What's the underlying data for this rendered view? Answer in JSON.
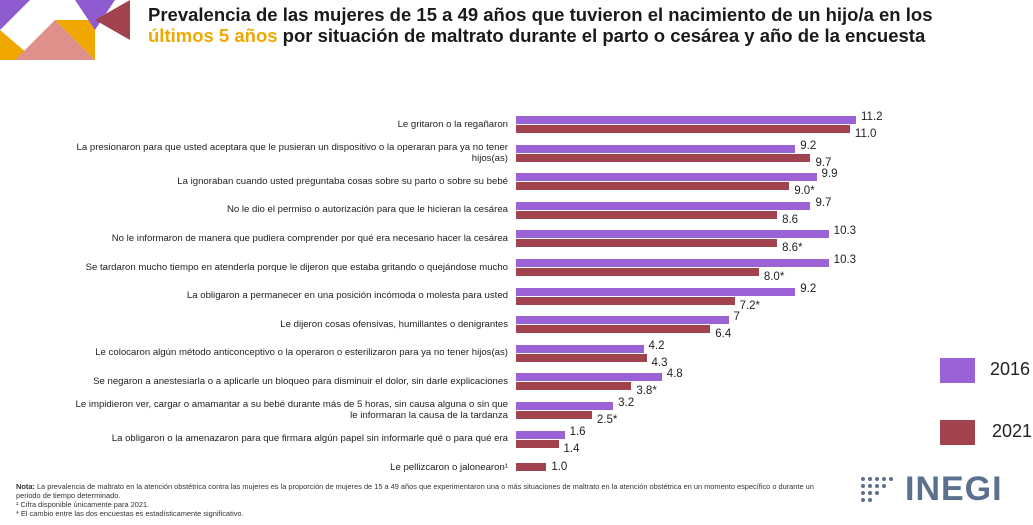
{
  "chart_data": {
    "type": "bar",
    "orientation": "horizontal",
    "title": [
      "Prevalencia de las mujeres de 15 a 49 años que tuvieron el nacimiento de un hijo/a en los ",
      "últimos 5 años",
      " por situación de maltrato durante el parto o cesárea y año de la encuesta"
    ],
    "categories": [
      "Le gritaron o la regañaron",
      "La presionaron para que usted aceptara que le pusieran un dispositivo o la operaran para ya no tener hijos(as)",
      "La ignoraban cuando usted preguntaba cosas sobre su parto o sobre su bebé",
      "No le dio el permiso o autorización para que le hicieran la cesárea",
      "No le informaron de manera que pudiera comprender por qué era necesario hacer la cesárea",
      "Se tardaron mucho tiempo en atenderla porque le dijeron que estaba gritando o quejándose mucho",
      "La obligaron a permanecer en una posición incómoda o molesta para usted",
      "Le dijeron cosas ofensivas, humillantes o denigrantes",
      "Le colocaron algún método anticonceptivo o la operaron o esterilizaron para ya no tener hijos(as)",
      "Se negaron a anestesiarla o a aplicarle un bloqueo para disminuir el dolor, sin darle explicaciones",
      "Le impidieron ver, cargar o amamantar a su bebé durante más de 5 horas, sin causa alguna o sin que le informaran la causa de la tardanza",
      "La obligaron o la amenazaron para que firmara algún papel sin informarle qué o para qué era",
      "Le pellizcaron o jalonearon¹"
    ],
    "series": [
      {
        "name": "2016",
        "color": "#9a62d4",
        "values": [
          11.2,
          9.2,
          9.9,
          9.7,
          10.3,
          10.3,
          9.2,
          7.0,
          4.2,
          4.8,
          3.2,
          1.6,
          null
        ]
      },
      {
        "name": "2021",
        "color": "#a0434f",
        "values": [
          11.0,
          9.7,
          9.0,
          8.6,
          8.6,
          8.0,
          7.2,
          6.4,
          4.3,
          3.8,
          2.5,
          1.4,
          1.0
        ],
        "value_labels": [
          "11.0",
          "9.7",
          "9.0*",
          "8.6",
          "8.6*",
          "8.0*",
          "7.2*",
          "6.4",
          "4.3",
          "3.8*",
          "2.5*",
          "1.4",
          "1.0"
        ]
      }
    ],
    "notes": [
      "Nota:",
      " La prevalencia de maltrato en la atención obstétrica contra las mujeres es la proporción de mujeres de 15 a 49 años que experimentaron una o más situaciones de maltrato en la atención obstétrica en un momento específico o durante un periodo de tiempo determinado.",
      "¹ Cifra disponible únicamente para 2021.",
      "* El cambio entre las dos encuestas es estadísticamente significativo."
    ],
    "logo": "INEGI"
  }
}
